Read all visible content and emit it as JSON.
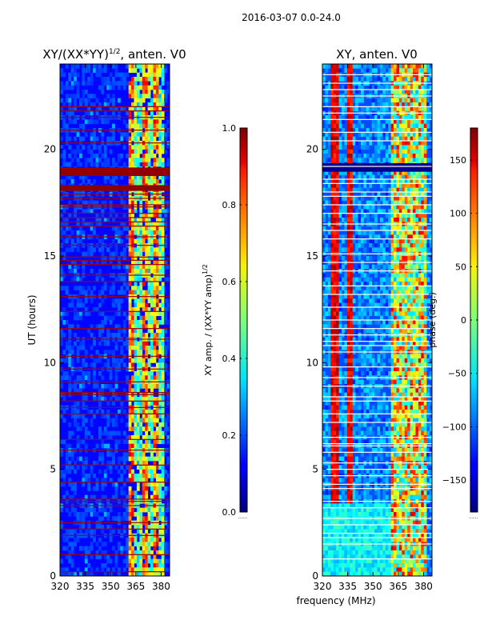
{
  "suptitle": "2016-03-07 0.0-24.0",
  "chart_data": [
    {
      "type": "heatmap",
      "title": "XY/(XX*YY)^{1/2}, anten. V0",
      "title_main": "XY/(XX*YY)",
      "title_sup": "1/2",
      "title_tail": ", anten. V0",
      "xlabel": "",
      "ylabel": "UT (hours)",
      "xlim": [
        320,
        385
      ],
      "ylim": [
        0,
        24
      ],
      "xticks": [
        320,
        335,
        350,
        365,
        380
      ],
      "yticks": [
        0,
        5,
        10,
        15,
        20
      ],
      "colormap": "jet",
      "colorbar": {
        "label": "XY amp. / (XX*YY amp)^{1/2}",
        "label_main": "XY amp. / (XX*YY amp)",
        "label_sup": "1/2",
        "range": [
          0.0,
          1.0
        ],
        "ticks": [
          0.0,
          0.2,
          0.4,
          0.6,
          0.8,
          1.0
        ],
        "tick_labels": [
          "0.0",
          "0.2",
          "0.4",
          "0.6",
          "0.8",
          "1.0"
        ]
      },
      "saturated_hours": [
        0.2,
        1.0,
        1.9,
        2.2,
        2.5,
        3.3,
        3.5,
        3.6,
        4.4,
        5.2,
        5.9,
        6.4,
        7.6,
        7.9,
        8.2,
        8.5,
        8.6,
        9.1,
        9.7,
        10.3,
        11.1,
        11.6,
        12.4,
        13.1,
        13.8,
        14.1,
        14.6,
        14.8,
        14.95,
        15.5,
        15.9,
        16.4,
        16.6,
        16.8,
        17.0,
        17.3,
        17.4,
        17.7,
        17.9,
        18.1,
        18.2,
        18.3,
        18.8,
        18.9,
        19.0,
        19.1,
        20.3,
        20.9,
        21.5,
        21.8,
        22.0
      ],
      "band_hours": [
        [
          18.75,
          19.15
        ],
        [
          18.05,
          18.3
        ]
      ]
    },
    {
      "type": "heatmap",
      "title": "XY, anten. V0",
      "xlabel": "frequency (MHz)",
      "ylabel": "",
      "xlim": [
        320,
        385
      ],
      "ylim": [
        0,
        24
      ],
      "xticks": [
        320,
        335,
        350,
        365,
        380
      ],
      "yticks": [
        0,
        5,
        10,
        15,
        20
      ],
      "colormap": "jet",
      "colorbar": {
        "label": "phase (deg.)",
        "range": [
          -180,
          180
        ],
        "ticks": [
          -150,
          -100,
          -50,
          0,
          50,
          100,
          150
        ],
        "tick_labels": [
          "−150",
          "−100",
          "−50",
          "0",
          "50",
          "100",
          "150"
        ]
      },
      "gap_hours": [
        0.8,
        1.5,
        1.8,
        2.0,
        2.4,
        2.7,
        3.2,
        3.5,
        4.1,
        4.3,
        4.7,
        5.0,
        5.3,
        5.8,
        6.1,
        6.2,
        6.5,
        7.2,
        7.6,
        8.2,
        8.4,
        8.9,
        9.3,
        9.8,
        10.5,
        10.8,
        11.0,
        11.3,
        11.6,
        12.0,
        12.6,
        13.2,
        13.6,
        14.3,
        14.7,
        15.1,
        15.8,
        16.2,
        16.5,
        17.0,
        17.4,
        17.8,
        18.0,
        18.4,
        18.6,
        19.2,
        20.4,
        20.8,
        21.4,
        21.7,
        22.0,
        22.5,
        22.8,
        23.1,
        23.5
      ],
      "band_hours": [
        [
          18.95,
          19.35
        ]
      ]
    }
  ]
}
